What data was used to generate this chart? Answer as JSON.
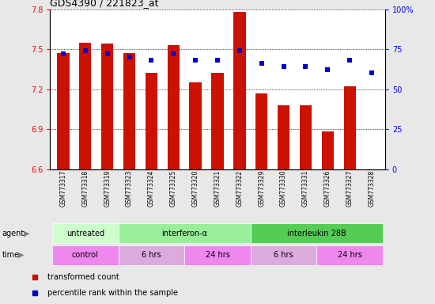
{
  "title": "GDS4390 / 221823_at",
  "samples": [
    "GSM773317",
    "GSM773318",
    "GSM773319",
    "GSM773323",
    "GSM773324",
    "GSM773325",
    "GSM773320",
    "GSM773321",
    "GSM773322",
    "GSM773329",
    "GSM773330",
    "GSM773331",
    "GSM773326",
    "GSM773327",
    "GSM773328"
  ],
  "bar_values": [
    7.47,
    7.55,
    7.54,
    7.47,
    7.32,
    7.53,
    7.25,
    7.32,
    7.78,
    7.17,
    7.08,
    7.08,
    6.88,
    7.22,
    6.6
  ],
  "percentile_values": [
    72,
    74,
    72,
    70,
    68,
    72,
    68,
    68,
    74,
    66,
    64,
    64,
    62,
    68,
    60
  ],
  "ylim_left": [
    6.6,
    7.8
  ],
  "ylim_right": [
    0,
    100
  ],
  "yticks_left": [
    6.6,
    6.9,
    7.2,
    7.5,
    7.8
  ],
  "yticks_right": [
    0,
    25,
    50,
    75,
    100
  ],
  "bar_color": "#cc1100",
  "dot_color": "#0000cc",
  "background_color": "#e8e8e8",
  "plot_bg_color": "#ffffff",
  "agent_groups": [
    {
      "label": "untreated",
      "start": 0,
      "end": 3,
      "color": "#ccffcc"
    },
    {
      "label": "interferon-α",
      "start": 3,
      "end": 9,
      "color": "#99ee99"
    },
    {
      "label": "interleukin 28B",
      "start": 9,
      "end": 15,
      "color": "#55cc55"
    }
  ],
  "time_groups": [
    {
      "label": "control",
      "start": 0,
      "end": 3,
      "color": "#ee88ee"
    },
    {
      "label": "6 hrs",
      "start": 3,
      "end": 6,
      "color": "#ddaadd"
    },
    {
      "label": "24 hrs",
      "start": 6,
      "end": 9,
      "color": "#ee88ee"
    },
    {
      "label": "6 hrs",
      "start": 9,
      "end": 12,
      "color": "#ddaadd"
    },
    {
      "label": "24 hrs",
      "start": 12,
      "end": 15,
      "color": "#ee88ee"
    }
  ],
  "legend_items": [
    {
      "color": "#cc1100",
      "label": "transformed count"
    },
    {
      "color": "#0000cc",
      "label": "percentile rank within the sample"
    }
  ]
}
